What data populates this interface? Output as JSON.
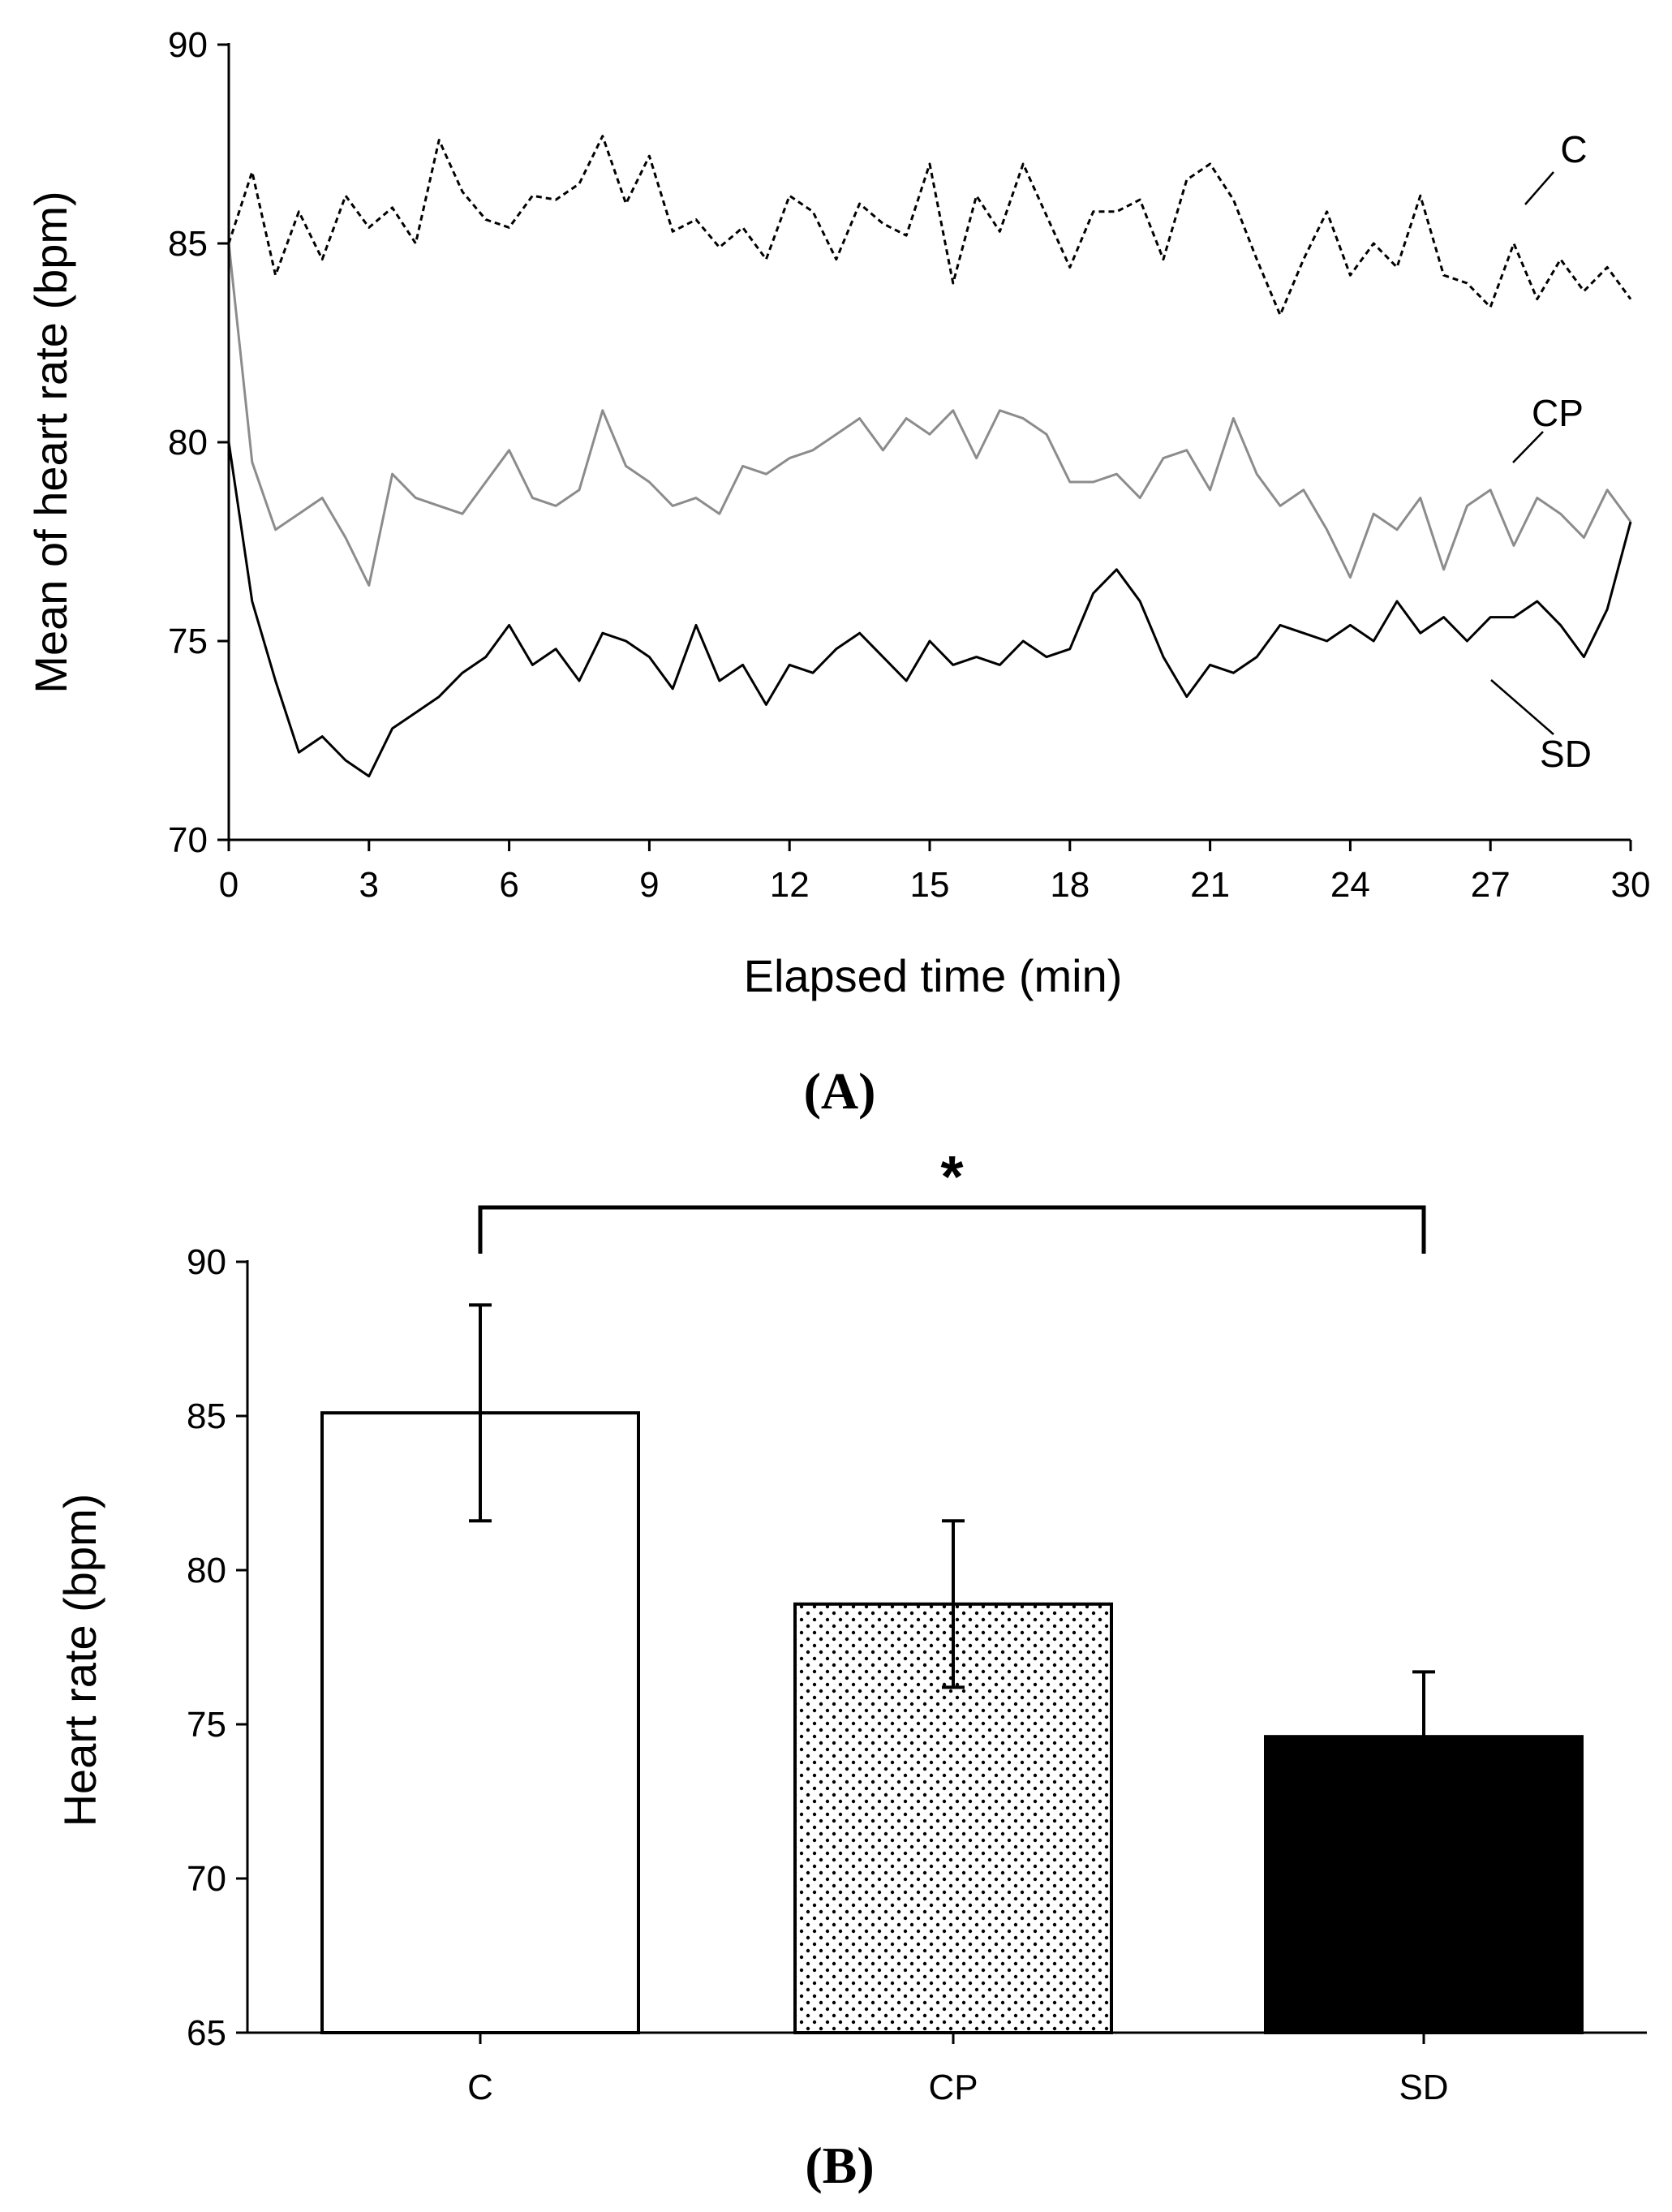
{
  "chart_data": [
    {
      "type": "line",
      "panel_label": "A",
      "xlabel": "Elapsed time (min)",
      "ylabel": "Mean of heart rate (bpm)",
      "xlim": [
        0,
        30
      ],
      "ylim": [
        70,
        90
      ],
      "xticks": [
        0,
        3,
        6,
        9,
        12,
        15,
        18,
        21,
        24,
        27,
        30
      ],
      "yticks": [
        70,
        75,
        80,
        85,
        90
      ],
      "grid": false,
      "legend": "none (direct labels)",
      "series": [
        {
          "name": "C",
          "style": "dashed",
          "color": "#000000",
          "x": [
            0,
            0.5,
            1,
            1.5,
            2,
            2.5,
            3,
            3.5,
            4,
            4.5,
            5,
            5.5,
            6,
            6.5,
            7,
            7.5,
            8,
            8.5,
            9,
            9.5,
            10,
            10.5,
            11,
            11.5,
            12,
            12.5,
            13,
            13.5,
            14,
            14.5,
            15,
            15.5,
            16,
            16.5,
            17,
            17.5,
            18,
            18.5,
            19,
            19.5,
            20,
            20.5,
            21,
            21.5,
            22,
            22.5,
            23,
            23.5,
            24,
            24.5,
            25,
            25.5,
            26,
            26.5,
            27,
            27.5,
            28,
            28.5,
            29,
            29.5,
            30
          ],
          "y": [
            85.0,
            86.8,
            84.2,
            85.8,
            84.6,
            86.2,
            85.4,
            85.9,
            85.0,
            87.6,
            86.3,
            85.6,
            85.4,
            86.2,
            86.1,
            86.5,
            87.7,
            86.0,
            87.2,
            85.3,
            85.6,
            84.9,
            85.4,
            84.6,
            86.2,
            85.8,
            84.6,
            86.0,
            85.5,
            85.2,
            87.0,
            84.0,
            86.2,
            85.3,
            87.0,
            85.7,
            84.4,
            85.8,
            85.8,
            86.1,
            84.6,
            86.6,
            87.0,
            86.1,
            84.6,
            83.2,
            84.6,
            85.8,
            84.2,
            85.0,
            84.4,
            86.2,
            84.2,
            84.0,
            83.4,
            85.0,
            83.6,
            84.6,
            83.8,
            84.4,
            83.6
          ]
        },
        {
          "name": "CP",
          "style": "solid",
          "color": "#8c8c8c",
          "x": [
            0,
            0.5,
            1,
            1.5,
            2,
            2.5,
            3,
            3.5,
            4,
            4.5,
            5,
            5.5,
            6,
            6.5,
            7,
            7.5,
            8,
            8.5,
            9,
            9.5,
            10,
            10.5,
            11,
            11.5,
            12,
            12.5,
            13,
            13.5,
            14,
            14.5,
            15,
            15.5,
            16,
            16.5,
            17,
            17.5,
            18,
            18.5,
            19,
            19.5,
            20,
            20.5,
            21,
            21.5,
            22,
            22.5,
            23,
            23.5,
            24,
            24.5,
            25,
            25.5,
            26,
            26.5,
            27,
            27.5,
            28,
            28.5,
            29,
            29.5,
            30
          ],
          "y": [
            85.0,
            79.5,
            77.8,
            78.2,
            78.6,
            77.6,
            76.4,
            79.2,
            78.6,
            78.4,
            78.2,
            79.0,
            79.8,
            78.6,
            78.4,
            78.8,
            80.8,
            79.4,
            79.0,
            78.4,
            78.6,
            78.2,
            79.4,
            79.2,
            79.6,
            79.8,
            80.2,
            80.6,
            79.8,
            80.6,
            80.2,
            80.8,
            79.6,
            80.8,
            80.6,
            80.2,
            79.0,
            79.0,
            79.2,
            78.6,
            79.6,
            79.8,
            78.8,
            80.6,
            79.2,
            78.4,
            78.8,
            77.8,
            76.6,
            78.2,
            77.8,
            78.6,
            76.8,
            78.4,
            78.8,
            77.4,
            78.6,
            78.2,
            77.6,
            78.8,
            78.0
          ]
        },
        {
          "name": "SD",
          "style": "solid",
          "color": "#000000",
          "x": [
            0,
            0.5,
            1,
            1.5,
            2,
            2.5,
            3,
            3.5,
            4,
            4.5,
            5,
            5.5,
            6,
            6.5,
            7,
            7.5,
            8,
            8.5,
            9,
            9.5,
            10,
            10.5,
            11,
            11.5,
            12,
            12.5,
            13,
            13.5,
            14,
            14.5,
            15,
            15.5,
            16,
            16.5,
            17,
            17.5,
            18,
            18.5,
            19,
            19.5,
            20,
            20.5,
            21,
            21.5,
            22,
            22.5,
            23,
            23.5,
            24,
            24.5,
            25,
            25.5,
            26,
            26.5,
            27,
            27.5,
            28,
            28.5,
            29,
            29.5,
            30
          ],
          "y": [
            80.0,
            76.0,
            74.0,
            72.2,
            72.6,
            72.0,
            71.6,
            72.8,
            73.2,
            73.6,
            74.2,
            74.6,
            75.4,
            74.4,
            74.8,
            74.0,
            75.2,
            75.0,
            74.6,
            73.8,
            75.4,
            74.0,
            74.4,
            73.4,
            74.4,
            74.2,
            74.8,
            75.2,
            74.6,
            74.0,
            75.0,
            74.4,
            74.6,
            74.4,
            75.0,
            74.6,
            74.8,
            76.2,
            76.8,
            76.0,
            74.6,
            73.6,
            74.4,
            74.2,
            74.6,
            75.4,
            75.2,
            75.0,
            75.4,
            75.0,
            76.0,
            75.2,
            75.6,
            75.0,
            75.6,
            75.6,
            76.0,
            75.4,
            74.6,
            75.8,
            78.0
          ]
        }
      ]
    },
    {
      "type": "bar",
      "panel_label": "B",
      "xlabel": "",
      "ylabel": "Heart rate (bpm)",
      "ylim": [
        65,
        90
      ],
      "yticks": [
        65,
        70,
        75,
        80,
        85,
        90
      ],
      "categories": [
        "C",
        "CP",
        "SD"
      ],
      "values": [
        85.1,
        78.9,
        74.6
      ],
      "errors": [
        3.5,
        2.7,
        2.1
      ],
      "fills": [
        "white",
        "dotted",
        "black"
      ],
      "significance": {
        "from": "C",
        "to": "SD",
        "label": "*"
      },
      "grid": false
    }
  ]
}
